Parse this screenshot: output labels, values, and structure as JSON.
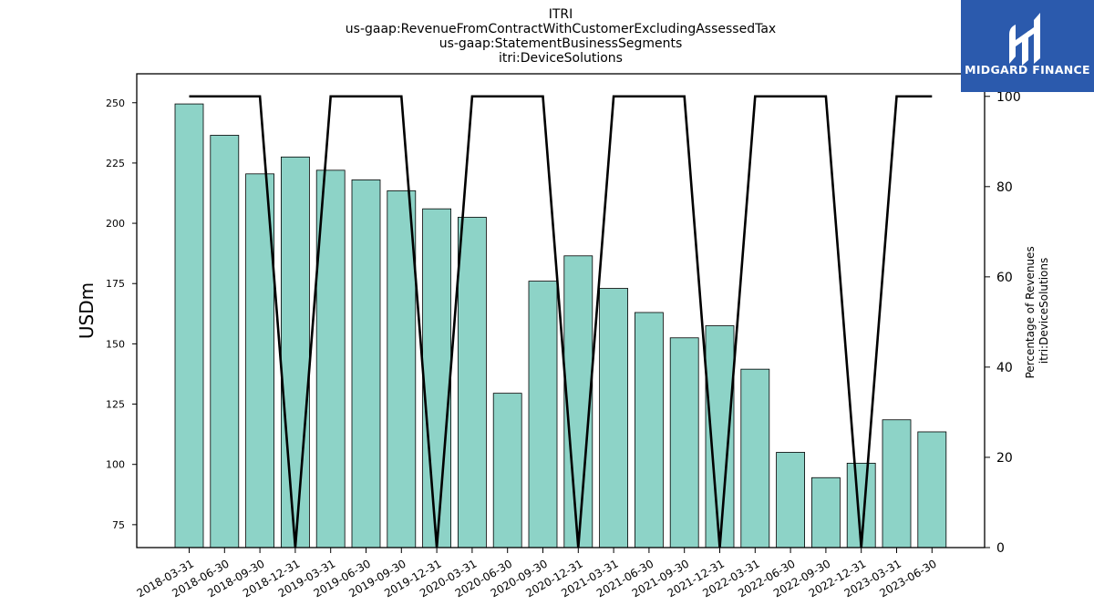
{
  "chart_data": {
    "type": "bar",
    "title_lines": [
      "ITRI",
      "us-gaap:RevenueFromContractWithCustomerExcludingAssessedTax",
      "us-gaap:StatementBusinessSegments",
      "itri:DeviceSolutions"
    ],
    "categories": [
      "2018-03-31",
      "2018-06-30",
      "2018-09-30",
      "2018-12-31",
      "2019-03-31",
      "2019-06-30",
      "2019-09-30",
      "2019-12-31",
      "2020-03-31",
      "2020-06-30",
      "2020-09-30",
      "2020-12-31",
      "2021-03-31",
      "2021-06-30",
      "2021-09-30",
      "2021-12-31",
      "2022-03-31",
      "2022-06-30",
      "2022-09-30",
      "2022-12-31",
      "2023-03-31",
      "2023-06-30"
    ],
    "series": [
      {
        "kind": "bar",
        "axis": "left",
        "color": "#8dd3c7",
        "values": [
          249.5,
          236.5,
          220.5,
          227.5,
          222,
          218,
          213.5,
          206,
          202.5,
          129.5,
          176,
          186.5,
          173,
          163,
          152.5,
          157.5,
          139.5,
          105,
          94.5,
          100.5,
          118.5,
          113.5
        ]
      },
      {
        "kind": "line",
        "axis": "right",
        "color": "#000000",
        "values": [
          100,
          100,
          100,
          0,
          100,
          100,
          100,
          0,
          100,
          100,
          100,
          0,
          100,
          100,
          100,
          0,
          100,
          100,
          100,
          0,
          100,
          100
        ]
      }
    ],
    "ylabel": "USDm",
    "ylabel_right": [
      "Percentage of Revenues",
      "itri:DeviceSolutions"
    ],
    "ylim": [
      65.5,
      262
    ],
    "yticks": [
      75,
      100,
      125,
      150,
      175,
      200,
      225,
      250
    ],
    "ylim_right": [
      0,
      105
    ],
    "yticks_right": [
      0,
      20,
      40,
      60,
      80,
      100
    ]
  },
  "logo": {
    "text": "MIDGARD FINANCE",
    "bg_color": "#2b5aad"
  }
}
